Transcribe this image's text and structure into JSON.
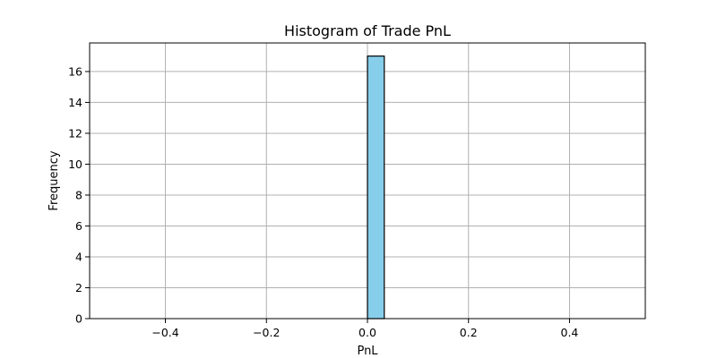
{
  "chart_data": {
    "type": "bar",
    "title": "Histogram of Trade PnL",
    "xlabel": "PnL",
    "ylabel": "Frequency",
    "xlim": [
      -0.55,
      0.55
    ],
    "ylim": [
      0,
      17.85
    ],
    "grid": true,
    "bar_color": "#87ceeb",
    "edge_color": "#000000",
    "x_ticks": [
      -0.4,
      -0.2,
      0.0,
      0.2,
      0.4
    ],
    "x_tick_labels": [
      "−0.4",
      "−0.2",
      "0.0",
      "0.2",
      "0.4"
    ],
    "y_ticks": [
      0,
      2,
      4,
      6,
      8,
      10,
      12,
      14,
      16
    ],
    "y_tick_labels": [
      "0",
      "2",
      "4",
      "6",
      "8",
      "10",
      "12",
      "14",
      "16"
    ],
    "bin_range": [
      -0.5,
      0.5
    ],
    "bin_count": 30,
    "bins": [
      {
        "x0": 0.0,
        "x1": 0.0333,
        "count": 17
      }
    ]
  }
}
